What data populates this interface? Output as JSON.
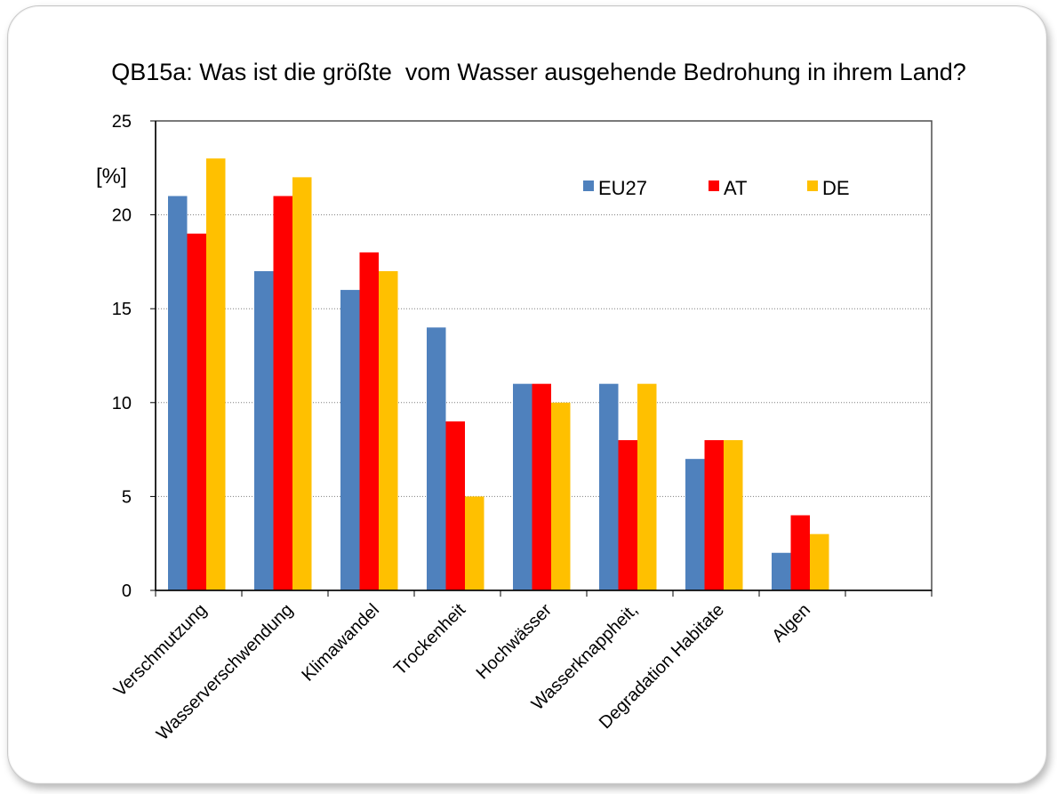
{
  "chart_data": {
    "type": "bar",
    "title": "QB15a: Was ist die größte  vom Wasser ausgehende Bedrohung in ihrem Land?",
    "ylabel": "[%]",
    "xlabel": "",
    "ylim": [
      0,
      25
    ],
    "yticks": [
      0,
      5,
      10,
      15,
      20,
      25
    ],
    "grid": true,
    "legend_position": "top-right",
    "categories": [
      "Verschmutzung",
      "Wasserverschwendung",
      "Klimawandel",
      "Trockenheit",
      "Hochwässer",
      "Wasserknappheit,",
      "Degradation Habitate",
      "Algen",
      ""
    ],
    "series": [
      {
        "name": "EU27",
        "color": "#4f81bd",
        "values": [
          21,
          17,
          16,
          14,
          11,
          11,
          7,
          2,
          null
        ]
      },
      {
        "name": "AT",
        "color": "#ff0000",
        "values": [
          19,
          21,
          18,
          9,
          11,
          8,
          8,
          4,
          null
        ]
      },
      {
        "name": "DE",
        "color": "#ffc000",
        "values": [
          23,
          22,
          17,
          5,
          10,
          11,
          8,
          3,
          null
        ]
      }
    ]
  }
}
